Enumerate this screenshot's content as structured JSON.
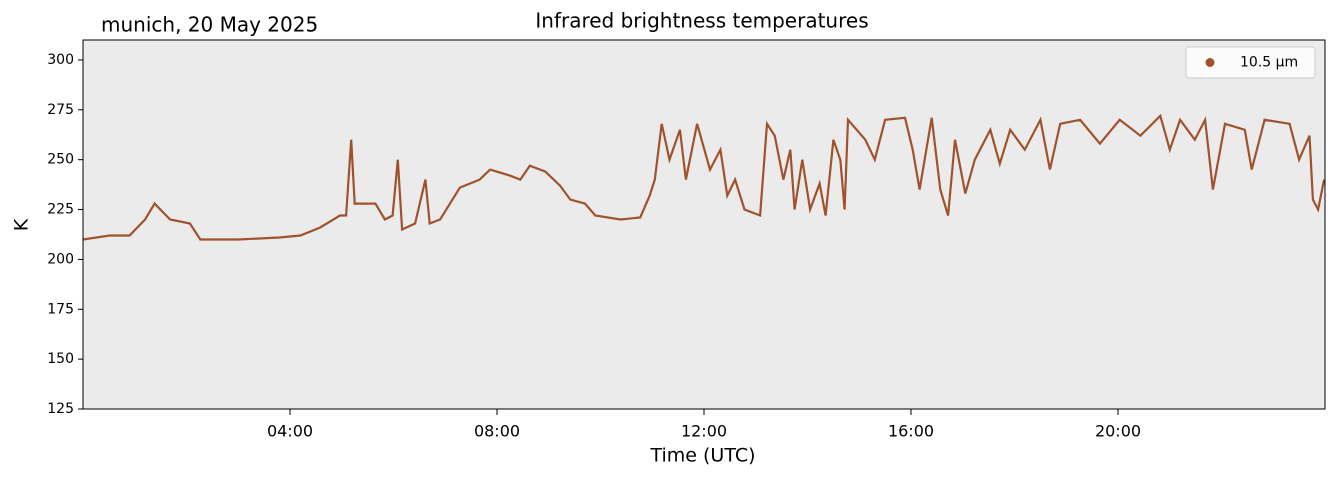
{
  "chart_data": {
    "type": "line",
    "title": "Infrared brightness temperatures",
    "subtitle": "munich, 20 May 2025",
    "x_label": "Time (UTC)",
    "y_label": "K",
    "x": [
      "00:00",
      "00:31",
      "00:54",
      "01:12",
      "01:23",
      "01:41",
      "02:04",
      "02:16",
      "03:00",
      "03:48",
      "04:12",
      "04:35",
      "04:58",
      "05:05",
      "05:11",
      "05:15",
      "05:39",
      "05:50",
      "05:59",
      "06:05",
      "06:10",
      "06:25",
      "06:37",
      "06:42",
      "06:54",
      "07:17",
      "07:40",
      "07:52",
      "08:15",
      "08:27",
      "08:38",
      "08:56",
      "09:13",
      "09:25",
      "09:42",
      "09:54",
      "10:23",
      "10:46",
      "10:57",
      "11:03",
      "11:11",
      "11:20",
      "11:32",
      "11:39",
      "11:52",
      "12:07",
      "12:19",
      "12:27",
      "12:36",
      "12:47",
      "13:05",
      "13:13",
      "13:22",
      "13:32",
      "13:40",
      "13:45",
      "13:54",
      "14:03",
      "14:14",
      "14:21",
      "14:30",
      "14:38",
      "14:43",
      "14:47",
      "15:07",
      "15:18",
      "15:30",
      "15:53",
      "16:02",
      "16:10",
      "16:24",
      "16:34",
      "16:43",
      "16:51",
      "17:03",
      "17:14",
      "17:32",
      "17:43",
      "17:55",
      "18:12",
      "18:30",
      "18:41",
      "18:53",
      "19:16",
      "19:39",
      "20:02",
      "20:26",
      "20:49",
      "21:00",
      "21:12",
      "21:29",
      "21:41",
      "21:50",
      "22:04",
      "22:27",
      "22:35",
      "22:50",
      "23:19",
      "23:30",
      "23:42",
      "23:46",
      "23:52",
      "23:59"
    ],
    "series": [
      {
        "name": "10.5 µm",
        "color": "#a0522d",
        "values": [
          210,
          212,
          212,
          220,
          228,
          220,
          218,
          210,
          210,
          211,
          212,
          216,
          222,
          222,
          260,
          228,
          228,
          220,
          222,
          250,
          215,
          218,
          240,
          218,
          220,
          236,
          240,
          245,
          242,
          240,
          247,
          244,
          237,
          230,
          228,
          222,
          220,
          221,
          232,
          240,
          268,
          250,
          265,
          240,
          268,
          245,
          255,
          232,
          240,
          225,
          222,
          268,
          262,
          240,
          255,
          225,
          250,
          225,
          238,
          222,
          260,
          250,
          225,
          270,
          260,
          250,
          270,
          271,
          255,
          235,
          271,
          235,
          222,
          260,
          233,
          250,
          265,
          248,
          265,
          255,
          270,
          245,
          268,
          270,
          258,
          270,
          262,
          272,
          255,
          270,
          260,
          270,
          235,
          268,
          265,
          245,
          270,
          268,
          250,
          262,
          230,
          225,
          240
        ]
      }
    ],
    "xlim": [
      "00:00",
      "24:00"
    ],
    "xticks": [
      "04:00",
      "08:00",
      "12:00",
      "16:00",
      "20:00"
    ],
    "ylim": [
      125,
      310
    ],
    "yticks": [
      125,
      150,
      175,
      200,
      225,
      250,
      275,
      300
    ],
    "legend": "upper right",
    "background": "#ebebeb"
  }
}
